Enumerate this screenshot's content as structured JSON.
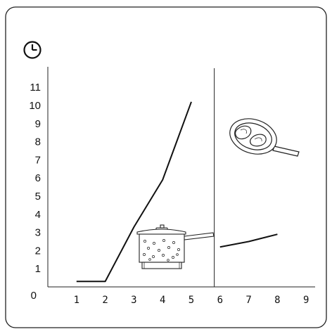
{
  "chart_data": {
    "type": "line",
    "y_ticks": [
      "0",
      "1",
      "2",
      "3",
      "4",
      "5",
      "6",
      "7",
      "8",
      "9",
      "10",
      "11"
    ],
    "x_ticks": [
      "1",
      "2",
      "3",
      "4",
      "5",
      "6",
      "7",
      "8",
      "9"
    ],
    "xlim": [
      0,
      9
    ],
    "ylim": [
      0,
      11
    ],
    "grid": false,
    "series": [
      {
        "values": [
          [
            1,
            0.3
          ],
          [
            2,
            0.3
          ],
          [
            3,
            3.3
          ],
          [
            4,
            5.9
          ],
          [
            5,
            10.2
          ]
        ]
      },
      {
        "values": [
          [
            6,
            2.2
          ],
          [
            7,
            2.5
          ],
          [
            8,
            2.9
          ]
        ]
      }
    ],
    "divider_at_x": 5.8
  },
  "icons": [
    "clock-icon",
    "boiling-pot-icon",
    "frying-pan-icon"
  ]
}
